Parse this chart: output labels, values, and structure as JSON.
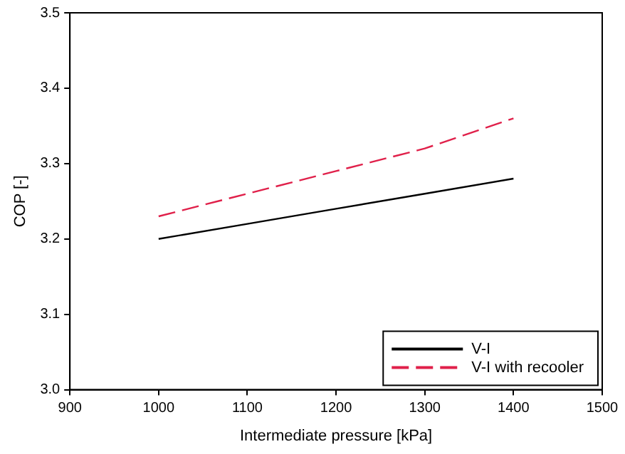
{
  "chart_data": {
    "type": "line",
    "xlabel": "Intermediate pressure [kPa]",
    "ylabel": "COP [-]",
    "x": [
      1000,
      1100,
      1200,
      1300,
      1400
    ],
    "series": [
      {
        "name": "V-I",
        "color": "#000000",
        "values": [
          3.2,
          3.22,
          3.24,
          3.26,
          3.28
        ],
        "line_style": "solid"
      },
      {
        "name": "V-I with recooler",
        "color": "#e0204a",
        "values": [
          3.23,
          3.26,
          3.29,
          3.32,
          3.36
        ],
        "line_style": "dashed"
      }
    ],
    "xlim": [
      900,
      1500
    ],
    "xticks": [
      900,
      1000,
      1100,
      1200,
      1300,
      1400,
      1500
    ],
    "ylim": [
      3.0,
      3.5
    ],
    "yticks": [
      {
        "value": 3.0,
        "label": "3.0"
      },
      3.1,
      3.2,
      3.3,
      3.4,
      3.5
    ],
    "grid": false,
    "legend": "bottom right",
    "marker": "none"
  }
}
